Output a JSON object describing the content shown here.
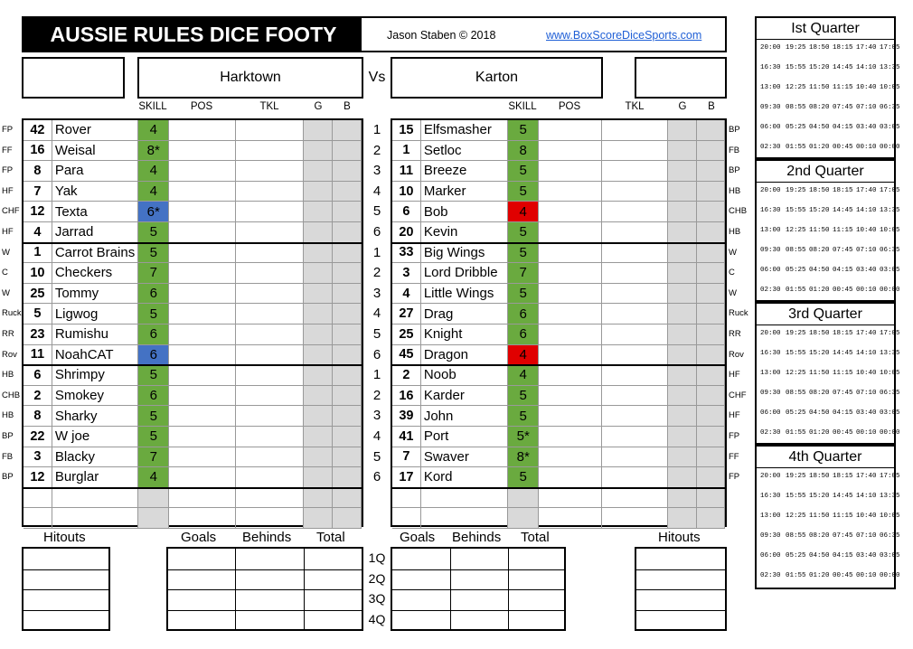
{
  "header": {
    "title": "AUSSIE RULES DICE FOOTY",
    "author": "Jason Staben © 2018",
    "website": "www.BoxScoreDiceSports.com"
  },
  "teams": {
    "home": "Harktown",
    "vs": "Vs",
    "away": "Karton"
  },
  "col_headers": {
    "skill": "SKILL",
    "pos": "POS",
    "tkl": "TKL",
    "g": "G",
    "b": "B"
  },
  "home_players": [
    {
      "pos": "FP",
      "num": "42",
      "name": "Rover",
      "skill": "4",
      "color": "green"
    },
    {
      "pos": "FF",
      "num": "16",
      "name": "Weisal",
      "skill": "8*",
      "color": "green"
    },
    {
      "pos": "FP",
      "num": "8",
      "name": "Para",
      "skill": "4",
      "color": "green"
    },
    {
      "pos": "HF",
      "num": "7",
      "name": "Yak",
      "skill": "4",
      "color": "green"
    },
    {
      "pos": "CHF",
      "num": "12",
      "name": "Texta",
      "skill": "6*",
      "color": "blue"
    },
    {
      "pos": "HF",
      "num": "4",
      "name": "Jarrad",
      "skill": "5",
      "color": "green"
    },
    {
      "pos": "W",
      "num": "1",
      "name": "Carrot Brains",
      "skill": "5",
      "color": "green"
    },
    {
      "pos": "C",
      "num": "10",
      "name": "Checkers",
      "skill": "7",
      "color": "green"
    },
    {
      "pos": "W",
      "num": "25",
      "name": "Tommy",
      "skill": "6",
      "color": "green"
    },
    {
      "pos": "Ruck",
      "num": "5",
      "name": "Ligwog",
      "skill": "5",
      "color": "green"
    },
    {
      "pos": "RR",
      "num": "23",
      "name": "Rumishu",
      "skill": "6",
      "color": "green"
    },
    {
      "pos": "Rov",
      "num": "11",
      "name": "NoahCAT",
      "skill": "6",
      "color": "blue"
    },
    {
      "pos": "HB",
      "num": "6",
      "name": "Shrimpy",
      "skill": "5",
      "color": "green"
    },
    {
      "pos": "CHB",
      "num": "2",
      "name": "Smokey",
      "skill": "6",
      "color": "green"
    },
    {
      "pos": "HB",
      "num": "8",
      "name": "Sharky",
      "skill": "5",
      "color": "green"
    },
    {
      "pos": "BP",
      "num": "22",
      "name": "W joe",
      "skill": "5",
      "color": "green"
    },
    {
      "pos": "FB",
      "num": "3",
      "name": "Blacky",
      "skill": "7",
      "color": "green"
    },
    {
      "pos": "BP",
      "num": "12",
      "name": "Burglar",
      "skill": "4",
      "color": "green"
    }
  ],
  "away_players": [
    {
      "pos": "BP",
      "num": "15",
      "name": "Elfsmasher",
      "skill": "5",
      "color": "green"
    },
    {
      "pos": "FB",
      "num": "1",
      "name": "Setloc",
      "skill": "8",
      "color": "green"
    },
    {
      "pos": "BP",
      "num": "11",
      "name": "Breeze",
      "skill": "5",
      "color": "green"
    },
    {
      "pos": "HB",
      "num": "10",
      "name": "Marker",
      "skill": "5",
      "color": "green"
    },
    {
      "pos": "CHB",
      "num": "6",
      "name": "Bob",
      "skill": "4",
      "color": "red"
    },
    {
      "pos": "HB",
      "num": "20",
      "name": "Kevin",
      "skill": "5",
      "color": "green"
    },
    {
      "pos": "W",
      "num": "33",
      "name": "Big Wings",
      "skill": "5",
      "color": "green"
    },
    {
      "pos": "C",
      "num": "3",
      "name": "Lord Dribble",
      "skill": "7",
      "color": "green"
    },
    {
      "pos": "W",
      "num": "4",
      "name": "Little Wings",
      "skill": "5",
      "color": "green"
    },
    {
      "pos": "Ruck",
      "num": "27",
      "name": "Drag",
      "skill": "6",
      "color": "green"
    },
    {
      "pos": "RR",
      "num": "25",
      "name": "Knight",
      "skill": "6",
      "color": "green"
    },
    {
      "pos": "Rov",
      "num": "45",
      "name": "Dragon",
      "skill": "4",
      "color": "red"
    },
    {
      "pos": "HF",
      "num": "2",
      "name": "Noob",
      "skill": "4",
      "color": "green"
    },
    {
      "pos": "CHF",
      "num": "16",
      "name": "Karder",
      "skill": "5",
      "color": "green"
    },
    {
      "pos": "HF",
      "num": "39",
      "name": "John",
      "skill": "5",
      "color": "green"
    },
    {
      "pos": "FP",
      "num": "41",
      "name": "Port",
      "skill": "5*",
      "color": "green"
    },
    {
      "pos": "FF",
      "num": "7",
      "name": "Swaver",
      "skill": "8*",
      "color": "green"
    },
    {
      "pos": "FP",
      "num": "17",
      "name": "Kord",
      "skill": "5",
      "color": "green"
    }
  ],
  "row_numbers": [
    "1",
    "2",
    "3",
    "4",
    "5",
    "6",
    "1",
    "2",
    "3",
    "4",
    "5",
    "6",
    "1",
    "2",
    "3",
    "4",
    "5",
    "6"
  ],
  "score_labels": {
    "hitouts": "Hitouts",
    "goals": "Goals",
    "behinds": "Behinds",
    "total": "Total"
  },
  "quarter_rows": [
    "1Q",
    "2Q",
    "3Q",
    "4Q"
  ],
  "quarters": [
    "Ist Quarter",
    "2nd Quarter",
    "3rd Quarter",
    "4th Quarter"
  ],
  "time_rows": [
    [
      "20:00",
      "19:25",
      "18:50",
      "18:15",
      "17:40",
      "17:05"
    ],
    [
      "16:30",
      "15:55",
      "15:20",
      "14:45",
      "14:10",
      "13:35"
    ],
    [
      "13:00",
      "12:25",
      "11:50",
      "11:15",
      "10:40",
      "10:05"
    ],
    [
      "09:30",
      "08:55",
      "08:20",
      "07:45",
      "07:10",
      "06:35"
    ],
    [
      "06:00",
      "05:25",
      "04:50",
      "04:15",
      "03:40",
      "03:05"
    ],
    [
      "02:30",
      "01:55",
      "01:20",
      "00:45",
      "00:10",
      "00:00"
    ]
  ],
  "colors": {
    "green": "#6aaa3f",
    "blue": "#4472c4",
    "red": "#e00000",
    "gray": "#d9d9d9"
  }
}
